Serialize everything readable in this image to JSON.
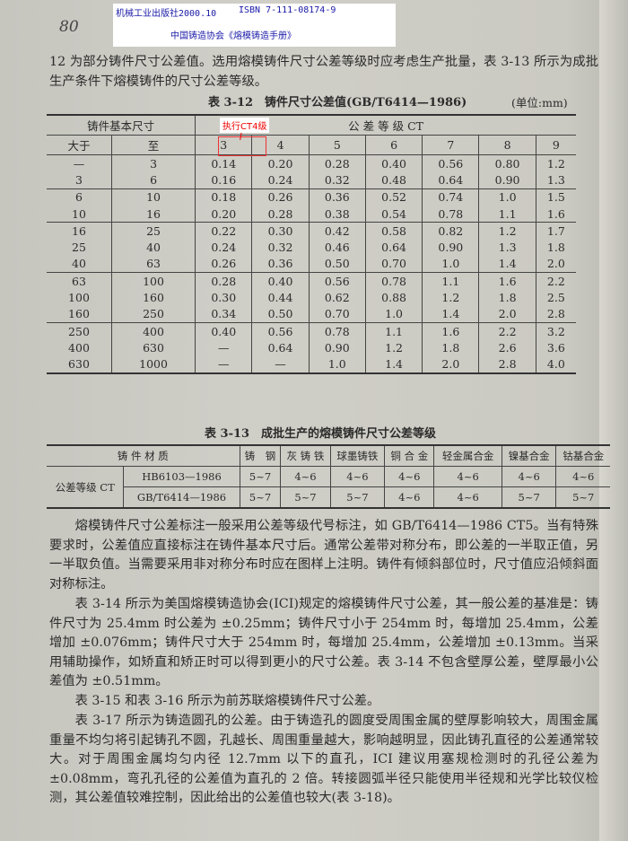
{
  "stamp": {
    "publisher": "机械工业出版社2000.10",
    "isbn": "ISBN 7-111-08174-9",
    "book": "中国铸造协会《熔模铸造手册》"
  },
  "page_number": "80",
  "intro": "12 为部分铸件尺寸公差值。选用熔模铸件尺寸公差等级时应考虑生产批量，表 3-13 所示为成批生产条件下熔模铸件的尺寸公差等级。",
  "table_3_12": {
    "caption": "表 3-12　铸件尺寸公差值(GB/T6414—1986)",
    "unit": "(单位:mm)",
    "header_size": "铸件基本尺寸",
    "header_grade": "公 差 等 级 CT",
    "col_from": "大于",
    "col_to": "至",
    "grades": [
      "3",
      "4",
      "5",
      "6",
      "7",
      "8",
      "9"
    ],
    "annotation": "执行CT4级",
    "annotation_color": "#e00000",
    "rows": [
      [
        "—",
        "3",
        "0.14",
        "0.20",
        "0.28",
        "0.40",
        "0.56",
        "0.80",
        "1.2"
      ],
      [
        "3",
        "6",
        "0.16",
        "0.24",
        "0.32",
        "0.48",
        "0.64",
        "0.90",
        "1.3"
      ],
      [
        "6",
        "10",
        "0.18",
        "0.26",
        "0.36",
        "0.52",
        "0.74",
        "1.0",
        "1.5"
      ],
      [
        "10",
        "16",
        "0.20",
        "0.28",
        "0.38",
        "0.54",
        "0.78",
        "1.1",
        "1.6"
      ],
      [
        "16",
        "25",
        "0.22",
        "0.30",
        "0.42",
        "0.58",
        "0.82",
        "1.2",
        "1.7"
      ],
      [
        "25",
        "40",
        "0.24",
        "0.32",
        "0.46",
        "0.64",
        "0.90",
        "1.3",
        "1.8"
      ],
      [
        "40",
        "63",
        "0.26",
        "0.36",
        "0.50",
        "0.70",
        "1.0",
        "1.4",
        "2.0"
      ],
      [
        "63",
        "100",
        "0.28",
        "0.40",
        "0.56",
        "0.78",
        "1.1",
        "1.6",
        "2.2"
      ],
      [
        "100",
        "160",
        "0.30",
        "0.44",
        "0.62",
        "0.88",
        "1.2",
        "1.8",
        "2.5"
      ],
      [
        "160",
        "250",
        "0.34",
        "0.50",
        "0.70",
        "1.0",
        "1.4",
        "2.0",
        "2.8"
      ],
      [
        "250",
        "400",
        "0.40",
        "0.56",
        "0.78",
        "1.1",
        "1.6",
        "2.2",
        "3.2"
      ],
      [
        "400",
        "630",
        "—",
        "0.64",
        "0.90",
        "1.2",
        "1.8",
        "2.6",
        "3.6"
      ],
      [
        "630",
        "1000",
        "—",
        "—",
        "1.0",
        "1.4",
        "2.0",
        "2.8",
        "4.0"
      ]
    ]
  },
  "table_3_13": {
    "caption": "表 3-13　成批生产的熔模铸件尺寸公差等级",
    "header_material": "铸 件 材 质",
    "materials": [
      "铸　钢",
      "灰 铸 铁",
      "球墨铸铁",
      "铜 合 金",
      "轻金属合金",
      "镍基合金",
      "钴基合金"
    ],
    "row_group": "公差等级 CT",
    "rows": [
      {
        "standard": "HB6103—1986",
        "values": [
          "5~7",
          "4~6",
          "4~6",
          "4~6",
          "4~6",
          "4~6",
          "4~6"
        ]
      },
      {
        "standard": "GB/T6414—1986",
        "values": [
          "5~7",
          "5~7",
          "5~7",
          "4~6",
          "4~6",
          "5~7",
          "5~7"
        ]
      }
    ]
  },
  "paragraphs": [
    "熔模铸件尺寸公差标注一般采用公差等级代号标注，如 GB/T6414—1986 CT5。当有特殊要求时，公差值应直接标注在铸件基本尺寸后。通常公差带对称分布，即公差的一半取正值，另一半取负值。当需要采用非对称分布时应在图样上注明。铸件有倾斜部位时，尺寸值应沿倾斜面对称标注。",
    "表 3-14 所示为美国熔模铸造协会(ICI)规定的熔模铸件尺寸公差，其一般公差的基准是：铸件尺寸为 25.4mm 时公差为 ±0.25mm；铸件尺寸小于 254mm 时，每增加 25.4mm，公差增加 ±0.076mm；铸件尺寸大于 254mm 时，每增加 25.4mm，公差增加 ±0.13mm。当采用辅助操作，如矫直和矫正时可以得到更小的尺寸公差。表 3-14 不包含壁厚公差，壁厚最小公差值为 ±0.51mm。",
    "表 3-15 和表 3-16 所示为前苏联熔模铸件尺寸公差。",
    "表 3-17 所示为铸造圆孔的公差。由于铸造孔的圆度受周围金属的壁厚影响较大，周围金属重量不均匀将引起铸孔不圆，孔越长、周围重量越大，影响越明显，因此铸孔直径的公差通常较大。对于周围金属均匀内径 12.7mm 以下的直孔，ICI 建议用塞规检测时的孔径公差为 ±0.08mm，弯孔孔径的公差值为直孔的 2 倍。转接圆弧半径只能使用半径规和光学比较仪检测，其公差值较难控制，因此给出的公差值也较大(表 3-18)。"
  ]
}
